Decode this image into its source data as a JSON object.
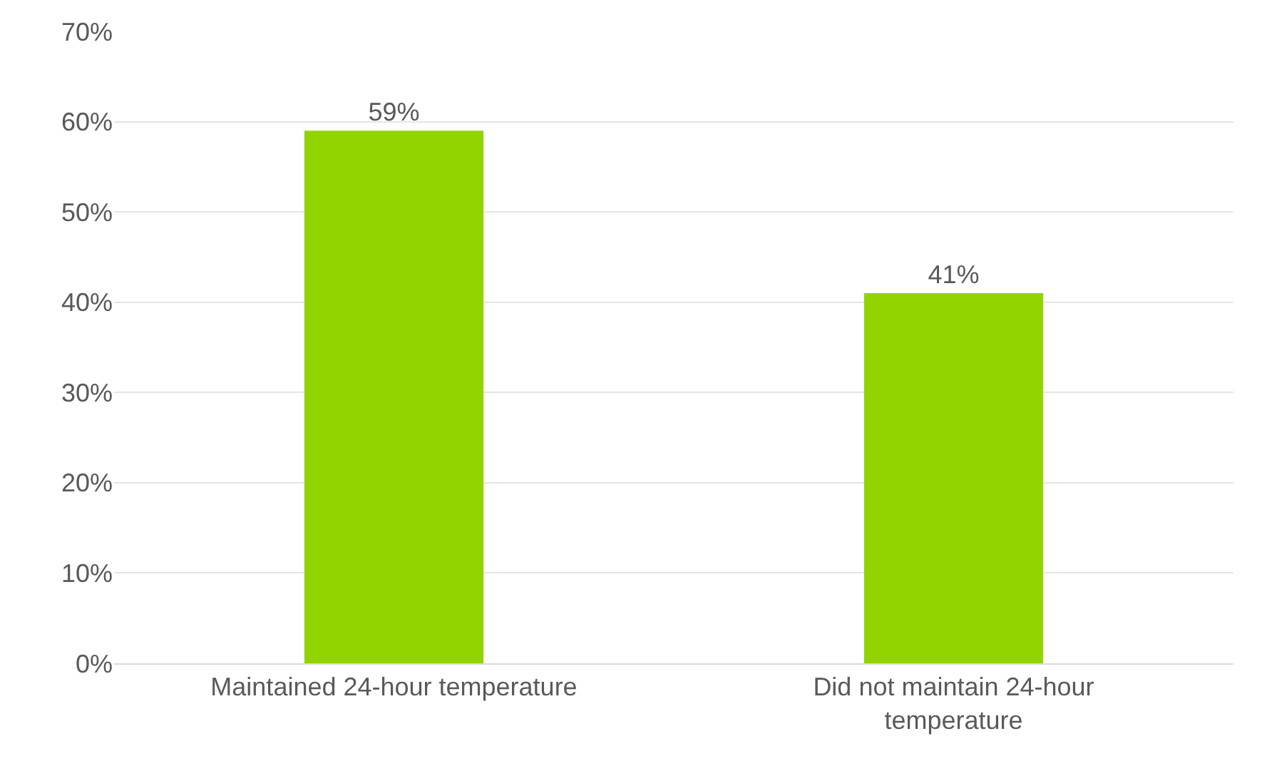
{
  "chart_data": {
    "type": "bar",
    "categories": [
      "Maintained 24-hour temperature",
      "Did not maintain 24-hour temperature"
    ],
    "values": [
      59,
      41
    ],
    "color": "#92d400",
    "value_labels": [
      "59%",
      "41%"
    ],
    "ylim": [
      0,
      70
    ],
    "yticks": [
      {
        "value": 0,
        "label": "0%"
      },
      {
        "value": 10,
        "label": "10%"
      },
      {
        "value": 20,
        "label": "20%"
      },
      {
        "value": 30,
        "label": "30%"
      },
      {
        "value": 40,
        "label": "40%"
      },
      {
        "value": 50,
        "label": "50%"
      },
      {
        "value": 60,
        "label": "60%"
      },
      {
        "value": 70,
        "label": "70%"
      }
    ],
    "grid": "y"
  }
}
